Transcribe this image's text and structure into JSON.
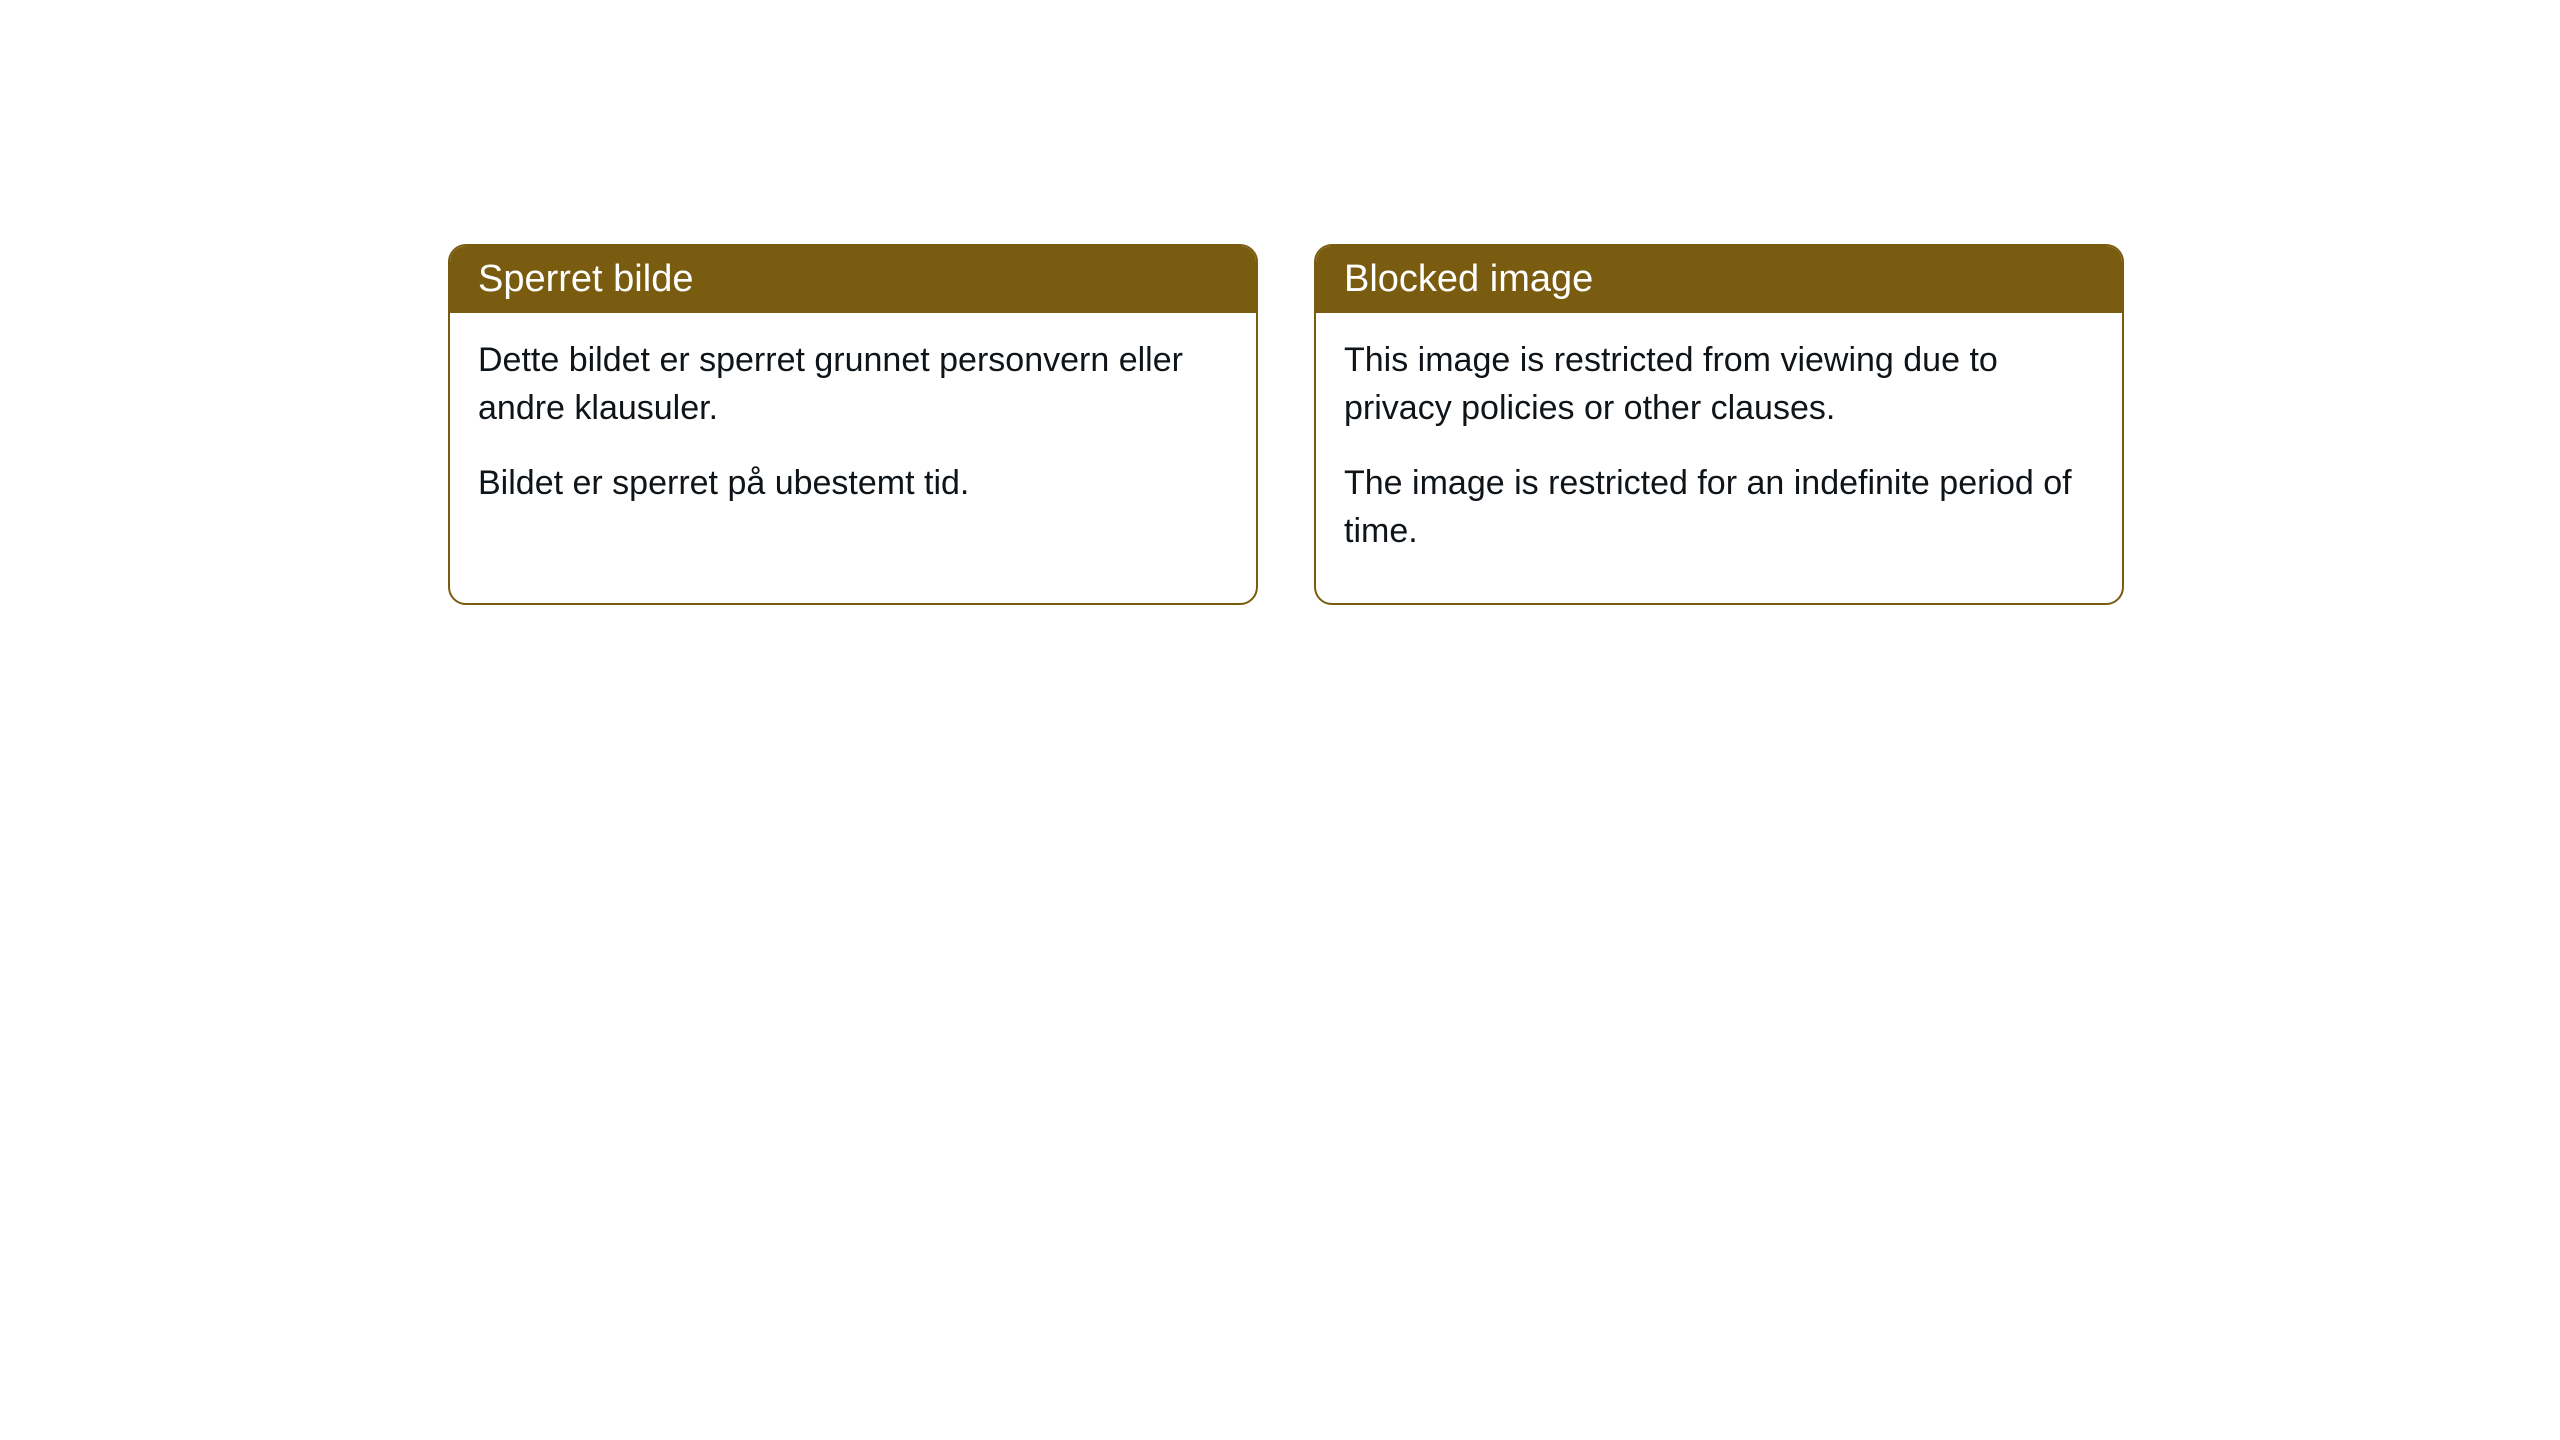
{
  "cards": [
    {
      "title": "Sperret bilde",
      "paragraph1": "Dette bildet er sperret grunnet personvern eller andre klausuler.",
      "paragraph2": "Bildet er sperret på ubestemt tid."
    },
    {
      "title": "Blocked image",
      "paragraph1": "This image is restricted from viewing due to privacy policies or other clauses.",
      "paragraph2": "The image is restricted for an indefinite period of time."
    }
  ],
  "styling": {
    "header_background_color": "#7a5c10",
    "header_text_color": "#ffffff",
    "border_color": "#7a5c10",
    "border_radius": 18,
    "body_text_color": "#0f1419",
    "background_color": "#ffffff",
    "title_fontsize": 38,
    "body_fontsize": 34
  }
}
